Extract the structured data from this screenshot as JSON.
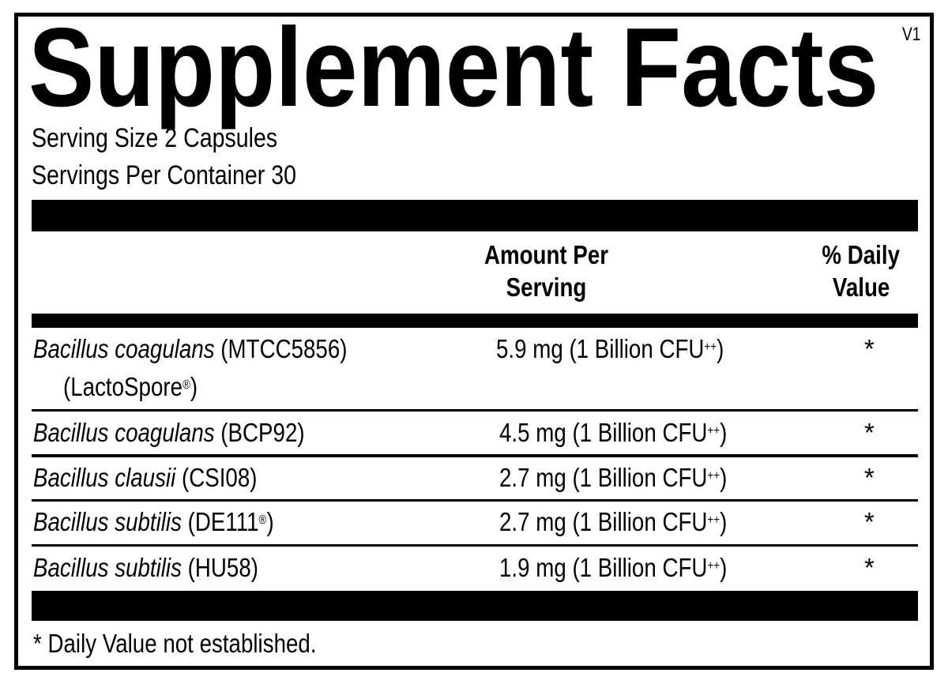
{
  "title": "Supplement Facts",
  "version": "V1",
  "serving_size": "Serving Size 2 Capsules",
  "servings_per_container": "Servings Per Container 30",
  "headers": {
    "amount_line1": "Amount Per",
    "amount_line2": "Serving",
    "dv_line1": "% Daily",
    "dv_line2": "Value"
  },
  "rows": [
    {
      "name": "Bacillus coagulans",
      "strain": " (MTCC5856)",
      "line2": "(LactoSpore",
      "mark": "®",
      "line2_end": ")",
      "amount": "5.9 mg (1 Billion CFU",
      "amount_sup": "++",
      "amount_end": ")",
      "dv": "*"
    },
    {
      "name": "Bacillus coagulans",
      "strain": " (BCP92)",
      "amount": "4.5 mg (1 Billion CFU",
      "amount_sup": "++",
      "amount_end": ")",
      "dv": "*"
    },
    {
      "name": "Bacillus clausii",
      "strain": " (CSI08)",
      "amount": "2.7 mg (1 Billion CFU",
      "amount_sup": "++",
      "amount_end": ")",
      "dv": "*"
    },
    {
      "name": "Bacillus subtilis",
      "strain": " (DE111",
      "mark": "®",
      "strain_end": ")",
      "amount": "2.7 mg (1 Billion CFU",
      "amount_sup": "++",
      "amount_end": ")",
      "dv": "*"
    },
    {
      "name": "Bacillus subtilis",
      "strain": " (HU58)",
      "amount": "1.9 mg (1 Billion CFU",
      "amount_sup": "++",
      "amount_end": ")",
      "dv": "*"
    }
  ],
  "footnote": "* Daily Value not established."
}
